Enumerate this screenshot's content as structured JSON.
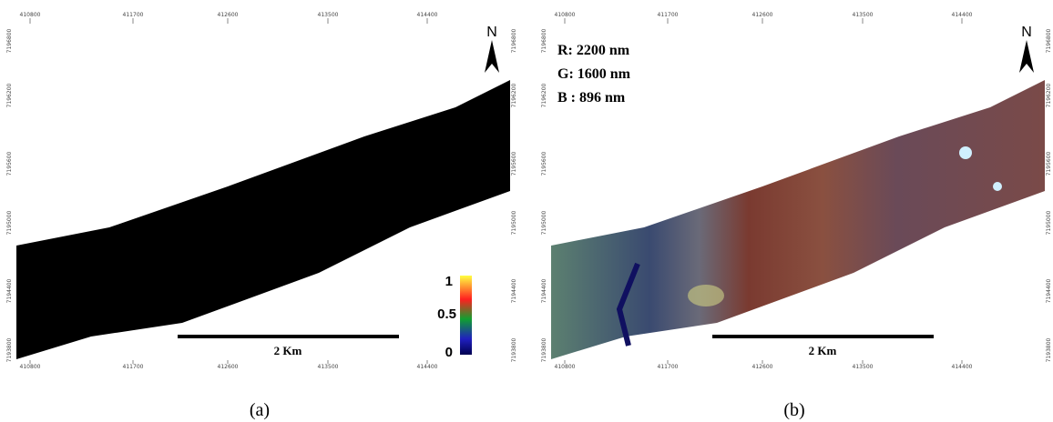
{
  "panels": [
    {
      "caption": "(a)",
      "top_ticks": [
        "410800",
        "411700",
        "412600",
        "413500",
        "414400"
      ],
      "bottom_ticks": [
        "410800",
        "411700",
        "412600",
        "413500",
        "414400"
      ],
      "left_ticks": [
        "7196800",
        "7196200",
        "7195600",
        "7195000",
        "7194400",
        "7193800"
      ],
      "right_ticks": [
        "7196800",
        "7196200",
        "7195600",
        "7195000",
        "7194400",
        "7193800"
      ],
      "north": "N",
      "scale_bar": "2 Km",
      "legend": {
        "max": "1",
        "mid": "0.5",
        "min": "0"
      }
    },
    {
      "caption": "(b)",
      "top_ticks": [
        "410800",
        "411700",
        "412600",
        "413500",
        "414400"
      ],
      "bottom_ticks": [
        "410800",
        "411700",
        "412600",
        "413500",
        "414400"
      ],
      "left_ticks": [
        "7196800",
        "7196200",
        "7195600",
        "7195000",
        "7194400",
        "7193800"
      ],
      "right_ticks": [
        "7196800",
        "7196200",
        "7195600",
        "7195000",
        "7194400",
        "7193800"
      ],
      "north": "N",
      "scale_bar": "2 Km",
      "bands": [
        "R:  2200 nm",
        "G: 1600 nm",
        "B : 896 nm"
      ]
    }
  ]
}
